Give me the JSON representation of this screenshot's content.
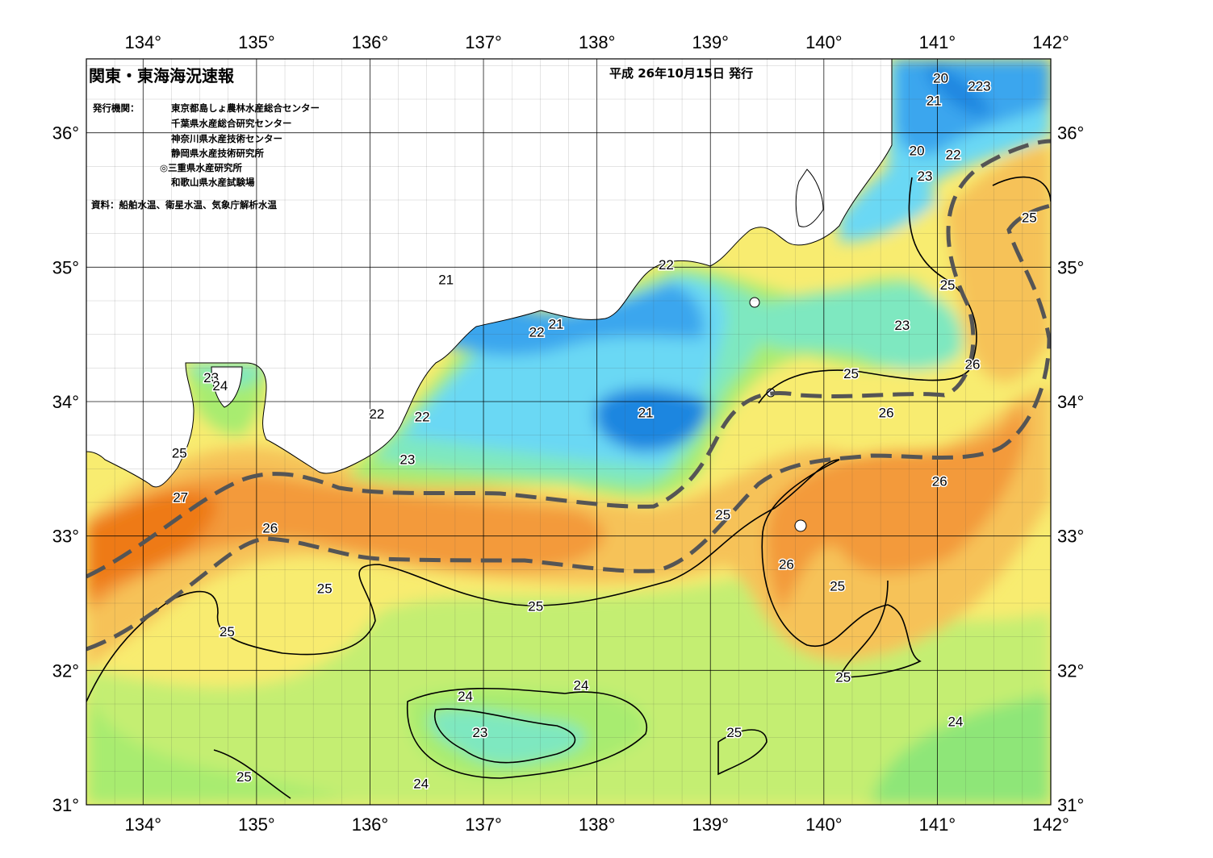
{
  "header": {
    "title": "関東・東海海況速報",
    "issued": "平成 26年10月15日 発行",
    "organizations_label": "発行機関：",
    "organizations": [
      "東京都島しょ農林水産総合センター",
      "千葉県水産総合研究センター",
      "神奈川県水産技術センター",
      "静岡県水産技術研究所",
      "◎三重県水産研究所",
      "和歌山県水産試験場"
    ],
    "source": "資料：船舶水温、衛星水温、気象庁解析水温"
  },
  "axes": {
    "longitude_ticks": [
      "134°",
      "135°",
      "136°",
      "137°",
      "138°",
      "139°",
      "140°",
      "141°",
      "142°"
    ],
    "latitude_ticks": [
      "31°",
      "32°",
      "33°",
      "34°",
      "35°",
      "36°"
    ],
    "lon_range": [
      133.5,
      142
    ],
    "lat_range": [
      31,
      36.55
    ]
  },
  "colors": {
    "t20": "#1f86e0",
    "t21": "#3aa6ee",
    "t22": "#6ad8f4",
    "t23": "#7ee8c0",
    "t24": "#a8ec70",
    "t25": "#f8ec70",
    "t26": "#f6c258",
    "t27": "#f39a3a",
    "t28": "#ee7a18",
    "land": "#ffffff",
    "kuroshio_axis": "#555555"
  },
  "contour_labels": [
    {
      "text": "20",
      "lon": 141.03,
      "lat": 36.41
    },
    {
      "text": "223",
      "lon": 141.37,
      "lat": 36.35
    },
    {
      "text": "21",
      "lon": 140.97,
      "lat": 36.24
    },
    {
      "text": "20",
      "lon": 140.82,
      "lat": 35.87
    },
    {
      "text": "22",
      "lon": 141.14,
      "lat": 35.84
    },
    {
      "text": "23",
      "lon": 140.89,
      "lat": 35.68
    },
    {
      "text": "25",
      "lon": 141.81,
      "lat": 35.37
    },
    {
      "text": "22",
      "lon": 138.61,
      "lat": 35.02
    },
    {
      "text": "21",
      "lon": 136.67,
      "lat": 34.91
    },
    {
      "text": "25",
      "lon": 141.09,
      "lat": 34.87
    },
    {
      "text": "21",
      "lon": 137.64,
      "lat": 34.58
    },
    {
      "text": "22",
      "lon": 137.47,
      "lat": 34.52
    },
    {
      "text": "23",
      "lon": 140.69,
      "lat": 34.57
    },
    {
      "text": "26",
      "lon": 141.31,
      "lat": 34.28
    },
    {
      "text": "25",
      "lon": 140.24,
      "lat": 34.21
    },
    {
      "text": "23",
      "lon": 134.6,
      "lat": 34.18
    },
    {
      "text": "24",
      "lon": 134.68,
      "lat": 34.12
    },
    {
      "text": "26",
      "lon": 140.55,
      "lat": 33.92
    },
    {
      "text": "22",
      "lon": 136.06,
      "lat": 33.91
    },
    {
      "text": "22",
      "lon": 136.46,
      "lat": 33.89
    },
    {
      "text": "21",
      "lon": 138.43,
      "lat": 33.92
    },
    {
      "text": "25",
      "lon": 134.32,
      "lat": 33.62
    },
    {
      "text": "23",
      "lon": 136.33,
      "lat": 33.57
    },
    {
      "text": "27",
      "lon": 134.33,
      "lat": 33.29
    },
    {
      "text": "26",
      "lon": 141.02,
      "lat": 33.41
    },
    {
      "text": "25",
      "lon": 139.11,
      "lat": 33.16
    },
    {
      "text": "26",
      "lon": 135.12,
      "lat": 33.06
    },
    {
      "text": "26",
      "lon": 139.67,
      "lat": 32.79
    },
    {
      "text": "25",
      "lon": 135.6,
      "lat": 32.61
    },
    {
      "text": "25",
      "lon": 140.12,
      "lat": 32.63
    },
    {
      "text": "25",
      "lon": 137.46,
      "lat": 32.48
    },
    {
      "text": "25",
      "lon": 134.74,
      "lat": 32.29
    },
    {
      "text": "25",
      "lon": 140.17,
      "lat": 31.95
    },
    {
      "text": "24",
      "lon": 137.86,
      "lat": 31.89
    },
    {
      "text": "24",
      "lon": 136.84,
      "lat": 31.81
    },
    {
      "text": "24",
      "lon": 141.16,
      "lat": 31.62
    },
    {
      "text": "23",
      "lon": 136.97,
      "lat": 31.54
    },
    {
      "text": "25",
      "lon": 139.21,
      "lat": 31.54
    },
    {
      "text": "24",
      "lon": 136.45,
      "lat": 31.16
    },
    {
      "text": "25",
      "lon": 134.89,
      "lat": 31.21
    }
  ]
}
